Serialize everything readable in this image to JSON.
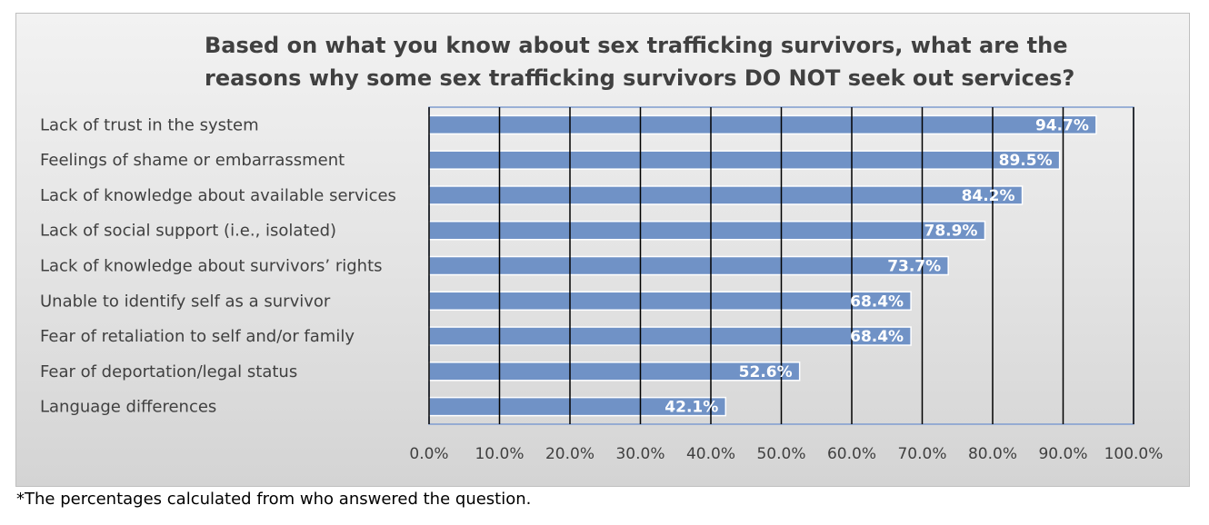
{
  "colors": {
    "bar": "#7092c6",
    "bar_stroke": "#ffffff",
    "grid": "#000000",
    "axis_frame": "#7f9ccf",
    "label_text": "#404040",
    "data_label_text": "#ffffff"
  },
  "footnote": "*The percentages calculated from who answered the question.",
  "chart_data": {
    "type": "bar",
    "orientation": "horizontal",
    "title": "Based on what you know about sex trafficking survivors, what are the reasons why some sex trafficking survivors DO NOT seek out services?",
    "xlabel": "",
    "ylabel": "",
    "xlim": [
      0,
      100
    ],
    "grid": true,
    "legend": "none",
    "categories": [
      "Lack of trust in the system",
      "Feelings of shame or embarrassment",
      "Lack of knowledge about available services",
      "Lack of social support (i.e., isolated)",
      "Lack of knowledge about survivors’ rights",
      "Unable to identify self as a survivor",
      "Fear of retaliation to self and/or family",
      "Fear of deportation/legal status",
      "Language differences"
    ],
    "values": [
      94.7,
      89.5,
      84.2,
      78.9,
      73.7,
      68.4,
      68.4,
      52.6,
      42.1
    ],
    "data_labels": [
      "94.7%",
      "89.5%",
      "84.2%",
      "78.9%",
      "73.7%",
      "68.4%",
      "68.4%",
      "52.6%",
      "42.1%"
    ],
    "x_tick_labels": [
      "0.0%",
      "10.0%",
      "20.0%",
      "30.0%",
      "40.0%",
      "50.0%",
      "60.0%",
      "70.0%",
      "80.0%",
      "90.0%",
      "100.0%"
    ]
  }
}
